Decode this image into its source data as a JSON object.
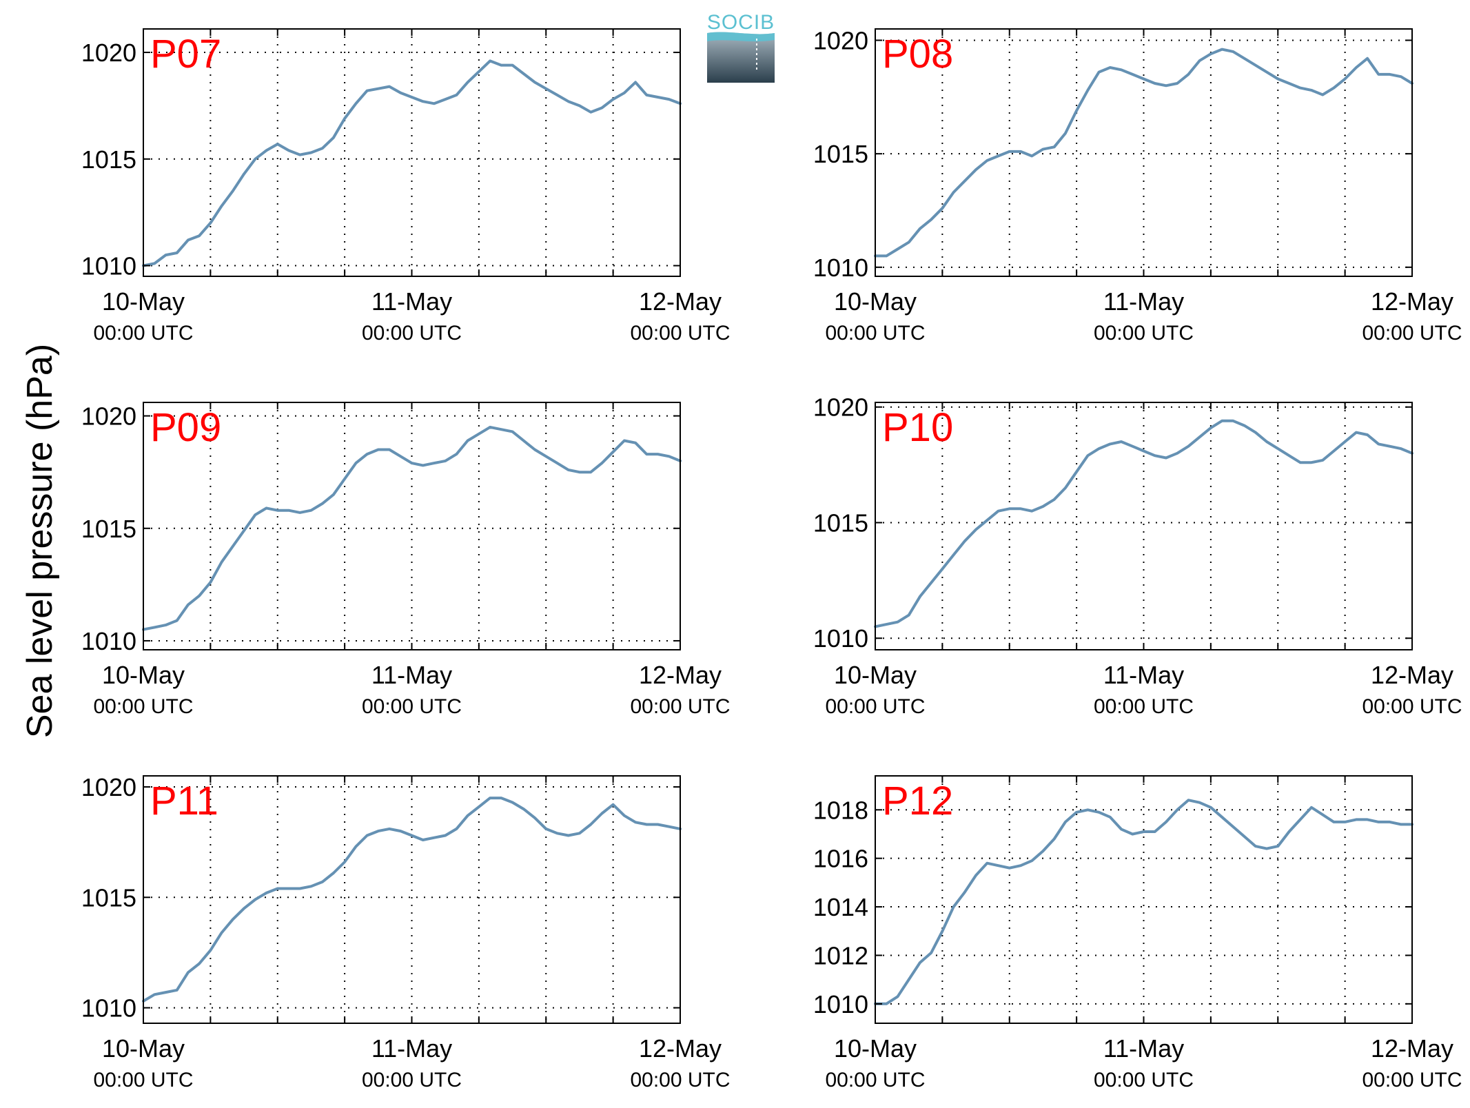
{
  "figure": {
    "ylabel": "Sea level pressure (hPa)",
    "logo_text": "SOCIB",
    "x_tick_dates": [
      "10-May",
      "11-May",
      "12-May"
    ],
    "x_tick_time": "00:00 UTC",
    "x_range_hours": [
      0,
      48
    ],
    "grid": true,
    "colors": {
      "line": "#6591b3",
      "station_label": "#ff0000",
      "axes": "#000000",
      "grid": "#000000"
    }
  },
  "chart_data": [
    {
      "type": "line",
      "station": "P07",
      "ylim": [
        1009.5,
        1021.1
      ],
      "yticks": [
        1010,
        1015,
        1020
      ],
      "x": [
        0,
        1,
        2,
        3,
        4,
        5,
        6,
        7,
        8,
        9,
        10,
        11,
        12,
        13,
        14,
        15,
        16,
        17,
        18,
        19,
        20,
        21,
        22,
        23,
        24,
        25,
        26,
        27,
        28,
        29,
        30,
        31,
        32,
        33,
        34,
        35,
        36,
        37,
        38,
        39,
        40,
        41,
        42,
        43,
        44,
        45,
        46,
        47,
        48
      ],
      "values": [
        1010.0,
        1010.1,
        1010.5,
        1010.6,
        1011.2,
        1011.4,
        1012.0,
        1012.8,
        1013.5,
        1014.3,
        1015.0,
        1015.4,
        1015.7,
        1015.4,
        1015.2,
        1015.3,
        1015.5,
        1016.0,
        1016.9,
        1017.6,
        1018.2,
        1018.3,
        1018.4,
        1018.1,
        1017.9,
        1017.7,
        1017.6,
        1017.8,
        1018.0,
        1018.6,
        1019.1,
        1019.6,
        1019.4,
        1019.4,
        1019.0,
        1018.6,
        1018.3,
        1018.0,
        1017.7,
        1017.5,
        1017.2,
        1017.4,
        1017.8,
        1018.1,
        1018.6,
        1018.0,
        1017.9,
        1017.8,
        1017.6
      ]
    },
    {
      "type": "line",
      "station": "P08",
      "ylim": [
        1009.6,
        1020.5
      ],
      "yticks": [
        1010,
        1015,
        1020
      ],
      "x": [
        0,
        1,
        2,
        3,
        4,
        5,
        6,
        7,
        8,
        9,
        10,
        11,
        12,
        13,
        14,
        15,
        16,
        17,
        18,
        19,
        20,
        21,
        22,
        23,
        24,
        25,
        26,
        27,
        28,
        29,
        30,
        31,
        32,
        33,
        34,
        35,
        36,
        37,
        38,
        39,
        40,
        41,
        42,
        43,
        44,
        45,
        46,
        47,
        48
      ],
      "values": [
        1010.5,
        1010.5,
        1010.8,
        1011.1,
        1011.7,
        1012.1,
        1012.6,
        1013.3,
        1013.8,
        1014.3,
        1014.7,
        1014.9,
        1015.1,
        1015.1,
        1014.9,
        1015.2,
        1015.3,
        1015.9,
        1016.9,
        1017.8,
        1018.6,
        1018.8,
        1018.7,
        1018.5,
        1018.3,
        1018.1,
        1018.0,
        1018.1,
        1018.5,
        1019.1,
        1019.4,
        1019.6,
        1019.5,
        1019.2,
        1018.9,
        1018.6,
        1018.3,
        1018.1,
        1017.9,
        1017.8,
        1017.6,
        1017.9,
        1018.3,
        1018.8,
        1019.2,
        1018.5,
        1018.5,
        1018.4,
        1018.1
      ]
    },
    {
      "type": "line",
      "station": "P09",
      "ylim": [
        1009.6,
        1020.6
      ],
      "yticks": [
        1010,
        1015,
        1020
      ],
      "x": [
        0,
        1,
        2,
        3,
        4,
        5,
        6,
        7,
        8,
        9,
        10,
        11,
        12,
        13,
        14,
        15,
        16,
        17,
        18,
        19,
        20,
        21,
        22,
        23,
        24,
        25,
        26,
        27,
        28,
        29,
        30,
        31,
        32,
        33,
        34,
        35,
        36,
        37,
        38,
        39,
        40,
        41,
        42,
        43,
        44,
        45,
        46,
        47,
        48
      ],
      "values": [
        1010.5,
        1010.6,
        1010.7,
        1010.9,
        1011.6,
        1012.0,
        1012.6,
        1013.5,
        1014.2,
        1014.9,
        1015.6,
        1015.9,
        1015.8,
        1015.8,
        1015.7,
        1015.8,
        1016.1,
        1016.5,
        1017.2,
        1017.9,
        1018.3,
        1018.5,
        1018.5,
        1018.2,
        1017.9,
        1017.8,
        1017.9,
        1018.0,
        1018.3,
        1018.9,
        1019.2,
        1019.5,
        1019.4,
        1019.3,
        1018.9,
        1018.5,
        1018.2,
        1017.9,
        1017.6,
        1017.5,
        1017.5,
        1017.9,
        1018.4,
        1018.9,
        1018.8,
        1018.3,
        1018.3,
        1018.2,
        1018.0
      ]
    },
    {
      "type": "line",
      "station": "P10",
      "ylim": [
        1009.5,
        1020.2
      ],
      "yticks": [
        1010,
        1015,
        1020
      ],
      "x": [
        0,
        1,
        2,
        3,
        4,
        5,
        6,
        7,
        8,
        9,
        10,
        11,
        12,
        13,
        14,
        15,
        16,
        17,
        18,
        19,
        20,
        21,
        22,
        23,
        24,
        25,
        26,
        27,
        28,
        29,
        30,
        31,
        32,
        33,
        34,
        35,
        36,
        37,
        38,
        39,
        40,
        41,
        42,
        43,
        44,
        45,
        46,
        47,
        48
      ],
      "values": [
        1010.5,
        1010.6,
        1010.7,
        1011.0,
        1011.8,
        1012.4,
        1013.0,
        1013.6,
        1014.2,
        1014.7,
        1015.1,
        1015.5,
        1015.6,
        1015.6,
        1015.5,
        1015.7,
        1016.0,
        1016.5,
        1017.2,
        1017.9,
        1018.2,
        1018.4,
        1018.5,
        1018.3,
        1018.1,
        1017.9,
        1017.8,
        1018.0,
        1018.3,
        1018.7,
        1019.1,
        1019.4,
        1019.4,
        1019.2,
        1018.9,
        1018.5,
        1018.2,
        1017.9,
        1017.6,
        1017.6,
        1017.7,
        1018.1,
        1018.5,
        1018.9,
        1018.8,
        1018.4,
        1018.3,
        1018.2,
        1018.0
      ]
    },
    {
      "type": "line",
      "station": "P11",
      "ylim": [
        1009.3,
        1020.5
      ],
      "yticks": [
        1010,
        1015,
        1020
      ],
      "x": [
        0,
        1,
        2,
        3,
        4,
        5,
        6,
        7,
        8,
        9,
        10,
        11,
        12,
        13,
        14,
        15,
        16,
        17,
        18,
        19,
        20,
        21,
        22,
        23,
        24,
        25,
        26,
        27,
        28,
        29,
        30,
        31,
        32,
        33,
        34,
        35,
        36,
        37,
        38,
        39,
        40,
        41,
        42,
        43,
        44,
        45,
        46,
        47,
        48
      ],
      "values": [
        1010.3,
        1010.6,
        1010.7,
        1010.8,
        1011.6,
        1012.0,
        1012.6,
        1013.4,
        1014.0,
        1014.5,
        1014.9,
        1015.2,
        1015.4,
        1015.4,
        1015.4,
        1015.5,
        1015.7,
        1016.1,
        1016.6,
        1017.3,
        1017.8,
        1018.0,
        1018.1,
        1018.0,
        1017.8,
        1017.6,
        1017.7,
        1017.8,
        1018.1,
        1018.7,
        1019.1,
        1019.5,
        1019.5,
        1019.3,
        1019.0,
        1018.6,
        1018.1,
        1017.9,
        1017.8,
        1017.9,
        1018.3,
        1018.8,
        1019.2,
        1018.7,
        1018.4,
        1018.3,
        1018.3,
        1018.2,
        1018.1
      ]
    },
    {
      "type": "line",
      "station": "P12",
      "ylim": [
        1009.2,
        1019.4
      ],
      "yticks": [
        1010,
        1012,
        1014,
        1016,
        1018
      ],
      "x": [
        0,
        1,
        2,
        3,
        4,
        5,
        6,
        7,
        8,
        9,
        10,
        11,
        12,
        13,
        14,
        15,
        16,
        17,
        18,
        19,
        20,
        21,
        22,
        23,
        24,
        25,
        26,
        27,
        28,
        29,
        30,
        31,
        32,
        33,
        34,
        35,
        36,
        37,
        38,
        39,
        40,
        41,
        42,
        43,
        44,
        45,
        46,
        47,
        48
      ],
      "values": [
        1010.0,
        1010.0,
        1010.3,
        1011.0,
        1011.7,
        1012.1,
        1013.0,
        1014.0,
        1014.6,
        1015.3,
        1015.8,
        1015.7,
        1015.6,
        1015.7,
        1015.9,
        1016.3,
        1016.8,
        1017.5,
        1017.9,
        1018.0,
        1017.9,
        1017.7,
        1017.2,
        1017.0,
        1017.1,
        1017.1,
        1017.5,
        1018.0,
        1018.4,
        1018.3,
        1018.1,
        1017.7,
        1017.3,
        1016.9,
        1016.5,
        1016.4,
        1016.5,
        1017.1,
        1017.6,
        1018.1,
        1017.8,
        1017.5,
        1017.5,
        1017.6,
        1017.6,
        1017.5,
        1017.5,
        1017.4,
        1017.4
      ]
    }
  ]
}
